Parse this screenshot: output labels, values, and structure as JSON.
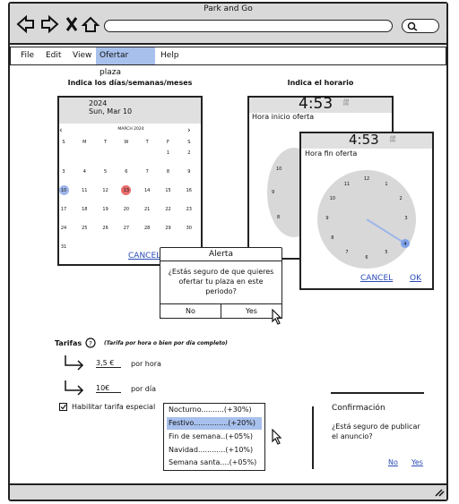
{
  "window": {
    "title": "Park and Go"
  },
  "menu": {
    "file": "File",
    "edit": "Edit",
    "view": "View",
    "offer": "Ofertar plaza",
    "help": "Help"
  },
  "dates": {
    "heading": "Indica los días/semanas/meses",
    "year": "2024",
    "date": "Sun, Mar 10",
    "month_label": "MARCH 2024",
    "weekdays": [
      "S",
      "M",
      "T",
      "W",
      "T",
      "F",
      "S"
    ],
    "rows": [
      [
        "",
        "",
        "",
        "",
        "",
        "1",
        "2"
      ],
      [
        "3",
        "4",
        "5",
        "6",
        "7",
        "8",
        "9"
      ],
      [
        "10",
        "11",
        "12",
        "13",
        "14",
        "15",
        "16"
      ],
      [
        "17",
        "18",
        "19",
        "20",
        "21",
        "22",
        "23"
      ],
      [
        "24",
        "25",
        "26",
        "27",
        "28",
        "29",
        "30"
      ],
      [
        "31",
        "",
        "",
        "",
        "",
        "",
        ""
      ]
    ],
    "cancel": "CANCEL"
  },
  "time": {
    "heading": "Indica el horario",
    "start_time": "4:53",
    "start_label": "Hora inicio oferta",
    "end_time": "4:53",
    "end_label": "Hora fin oferta",
    "dial_numbers": [
      "12",
      "1",
      "2",
      "3",
      "4",
      "5",
      "6",
      "7",
      "8",
      "9",
      "10",
      "11"
    ],
    "cancel": "CANCEL",
    "ok": "OK"
  },
  "alert": {
    "title": "Alerta",
    "message_line1": "¿Estás seguro de que quieres",
    "message_line2": "ofertar tu plaza en este",
    "message_line3": "periodo?",
    "no": "No",
    "yes": "Yes"
  },
  "rates": {
    "title": "Tarifas",
    "hint": "(Tarifa por hora o bien por día completo)",
    "hour_value": "3,5 €",
    "hour_unit": "por hora",
    "day_value": "10€",
    "day_unit": "por día",
    "special_label": "Habilitar tarifa especial",
    "options": [
      "Nocturno..........(+30%)",
      "Festivo...............(+20%)",
      "Fin de semana..(+05%)",
      "Navidad............(+10%)",
      "Semana santa....(+05%)"
    ]
  },
  "confirm": {
    "title": "Confirmación",
    "message_line1": "¿Está seguro de publicar",
    "message_line2": "el anuncio?",
    "no": "No",
    "yes": "Yes"
  },
  "colors": {
    "highlight": "#a8c0ec",
    "selected_day": "#9fb6ea",
    "marked_day": "#e86c6c",
    "link": "#2a4bb5"
  }
}
